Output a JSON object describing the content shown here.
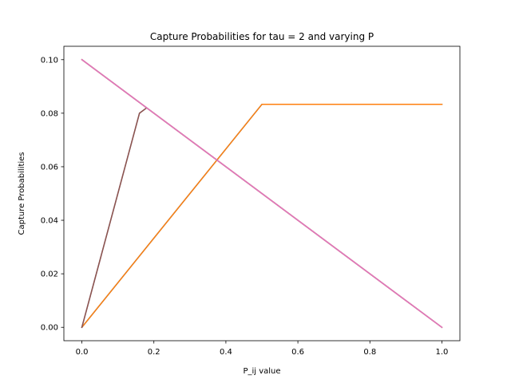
{
  "chart_data": {
    "type": "line",
    "title": "Capture Probabilities for tau = 2 and varying P",
    "xlabel": "P_ij value",
    "ylabel": "Capture Probabilities",
    "xlim": [
      -0.05,
      1.05
    ],
    "ylim": [
      -0.005,
      0.105
    ],
    "xticks": [
      0.0,
      0.2,
      0.4,
      0.6,
      0.8,
      1.0
    ],
    "xtick_labels": [
      "0.0",
      "0.2",
      "0.4",
      "0.6",
      "0.8",
      "1.0"
    ],
    "yticks": [
      0.0,
      0.02,
      0.04,
      0.06,
      0.08,
      0.1
    ],
    "ytick_labels": [
      "0.00",
      "0.02",
      "0.04",
      "0.06",
      "0.08",
      "0.10"
    ],
    "grid": false,
    "legend": "none",
    "series": [
      {
        "color": "#1f77b4",
        "x": [
          0.0,
          0.5,
          1.0
        ],
        "y": [
          0.0,
          0.0833,
          0.0833
        ]
      },
      {
        "color": "#ff7f0e",
        "x": [
          0.0,
          0.5,
          1.0
        ],
        "y": [
          0.0,
          0.0833,
          0.0833
        ]
      },
      {
        "color": "#2ca02c",
        "x": [
          0.0,
          1.0
        ],
        "y": [
          0.1,
          0.0
        ]
      },
      {
        "color": "#d62728",
        "x": [
          0.0,
          1.0
        ],
        "y": [
          0.1,
          0.0
        ]
      },
      {
        "color": "#9467bd",
        "x": [
          0.0,
          0.16,
          0.18
        ],
        "y": [
          0.0,
          0.08,
          0.082
        ]
      },
      {
        "color": "#8c564b",
        "x": [
          0.0,
          0.16,
          0.18
        ],
        "y": [
          0.0,
          0.08,
          0.082
        ]
      },
      {
        "color": "#e377c2",
        "x": [
          0.0,
          1.0
        ],
        "y": [
          0.1,
          0.0
        ]
      }
    ]
  }
}
